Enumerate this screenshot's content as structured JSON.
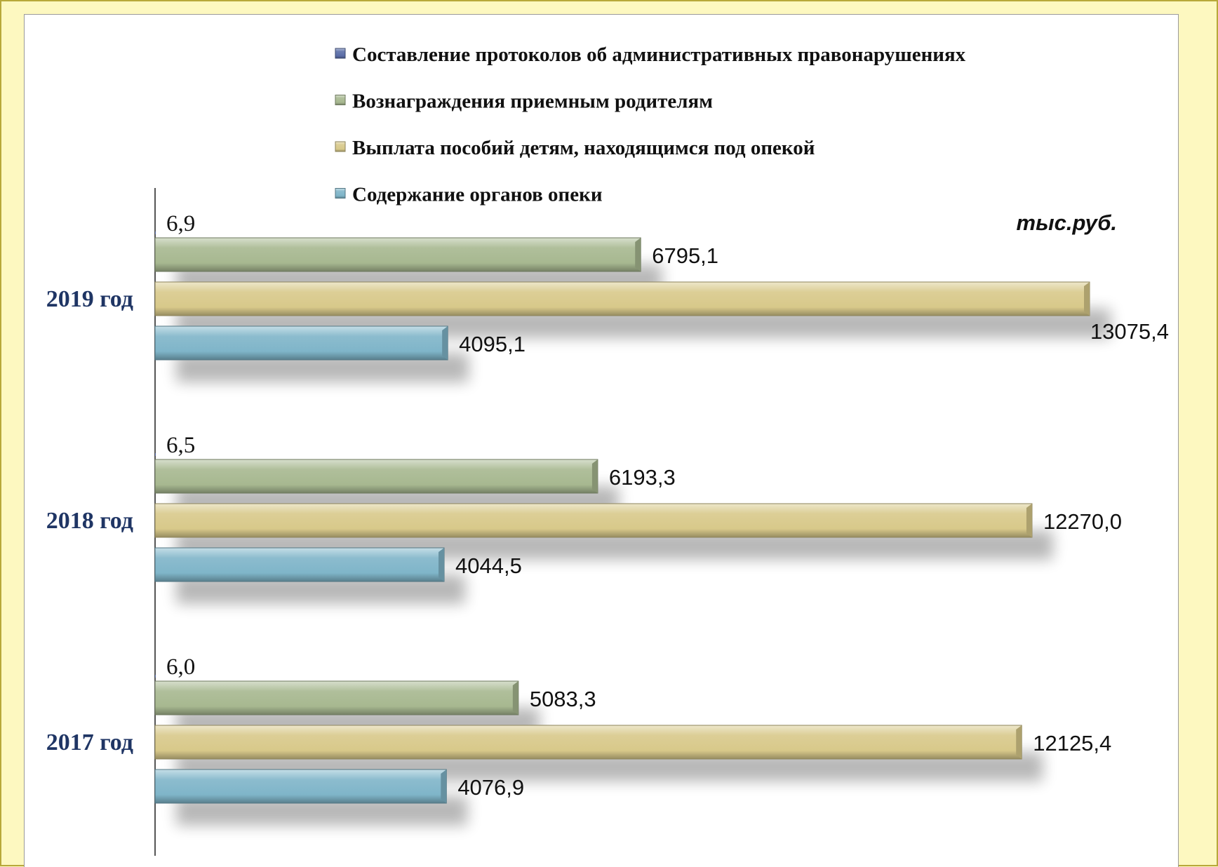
{
  "chart_data": {
    "type": "bar",
    "orientation": "horizontal",
    "title": "",
    "unit_label": "тыс.руб.",
    "categories": [
      "2019 год",
      "2018 год",
      "2017 год"
    ],
    "series": [
      {
        "name": "Составление протоколов об административных правонарушениях",
        "color": "#5b6ea8",
        "values": [
          6.9,
          6.5,
          6.0
        ],
        "labels": [
          "6,9",
          "6,5",
          "6,0"
        ]
      },
      {
        "name": "Вознаграждения приемным родителям",
        "color": "#a7b890",
        "values": [
          6795.1,
          6193.3,
          5083.3
        ],
        "labels": [
          "6795,1",
          "6193,3",
          "5083,3"
        ]
      },
      {
        "name": "Выплата пособий детям, находящимся под опекой",
        "color": "#d8c98a",
        "values": [
          13075.4,
          12270.0,
          12125.4
        ],
        "labels": [
          "13075,4",
          "12270,0",
          "12125,4"
        ]
      },
      {
        "name": "Содержание органов опеки",
        "color": "#7fb5c9",
        "values": [
          4095.1,
          4044.5,
          4076.9
        ],
        "labels": [
          "4095,1",
          "4044,5",
          "4076,9"
        ]
      }
    ],
    "xlim": [
      0,
      14200
    ],
    "legend_position": "top",
    "grid": false
  }
}
